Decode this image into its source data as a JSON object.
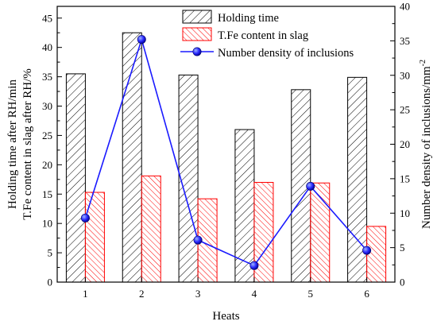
{
  "chart_data": {
    "type": "bar",
    "categories": [
      "1",
      "2",
      "3",
      "4",
      "5",
      "6"
    ],
    "xlabel": "Heats",
    "ylabel_left_line1": "Holding time after RH/min",
    "ylabel_left_line2": "T.Fe content in slag after RH/%",
    "ylabel_right_prefix": "Number density of inclusions/mm",
    "ylabel_right_exponent": "-2",
    "ylim_left": [
      0,
      47
    ],
    "ylim_right": [
      0,
      40
    ],
    "yticks_left": [
      0,
      5,
      10,
      15,
      20,
      25,
      30,
      35,
      40,
      45
    ],
    "yticks_right": [
      0,
      5,
      10,
      15,
      20,
      25,
      30,
      35,
      40
    ],
    "series": [
      {
        "name": "Holding time",
        "kind": "bar",
        "axis": "left",
        "color": "#000000",
        "values": [
          35.5,
          42.5,
          35.3,
          26.0,
          32.8,
          34.9
        ]
      },
      {
        "name": "T.Fe content in slag",
        "kind": "bar",
        "axis": "left",
        "color": "#ff0000",
        "values": [
          15.3,
          18.1,
          14.2,
          17.0,
          16.9,
          9.5
        ]
      },
      {
        "name": "Number density of inclusions",
        "kind": "line",
        "axis": "right",
        "color": "#1a1aff",
        "values": [
          9.3,
          35.2,
          6.1,
          2.4,
          13.9,
          4.6
        ]
      }
    ],
    "legend_position": "top-right",
    "grid": false
  }
}
